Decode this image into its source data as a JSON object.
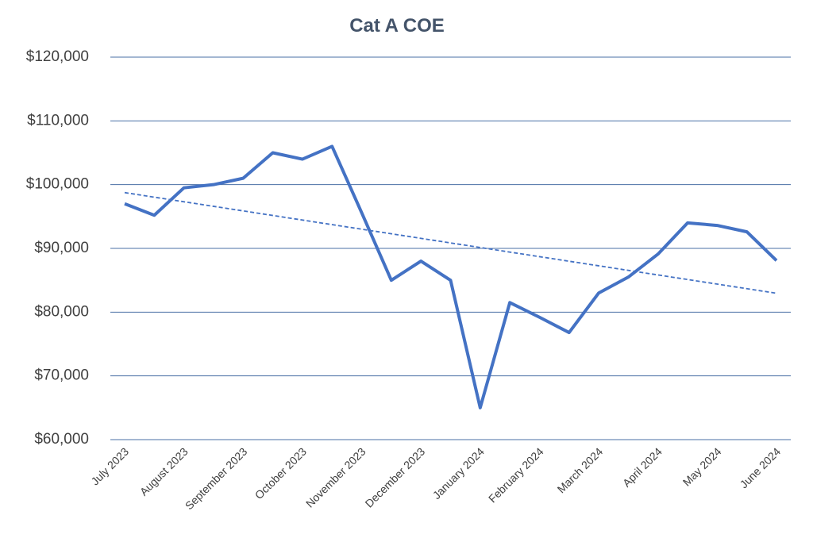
{
  "chart_data": {
    "type": "line",
    "title": "Cat A COE",
    "categories": [
      "July 2023",
      null,
      "August 2023",
      null,
      "September 2023",
      null,
      "October 2023",
      null,
      "November 2023",
      null,
      "December 2023",
      null,
      "January 2024",
      null,
      "February 2024",
      null,
      "March 2024",
      null,
      "April 2024",
      null,
      "May 2024",
      null,
      "June 2024"
    ],
    "series": [
      {
        "name": "Cat A COE",
        "color": "#4472c4",
        "values": [
          97000,
          95200,
          99500,
          100000,
          101000,
          105000,
          104000,
          106000,
          95600,
          85000,
          88000,
          85000,
          65000,
          81500,
          79200,
          76800,
          83000,
          85500,
          89100,
          94000,
          93600,
          92600,
          88100
        ]
      }
    ],
    "trendline": "linear",
    "ylim": [
      60000,
      120000
    ],
    "yticks": [
      {
        "value": 60000,
        "label": "$60,000"
      },
      {
        "value": 70000,
        "label": "$70,000"
      },
      {
        "value": 80000,
        "label": "$80,000"
      },
      {
        "value": 90000,
        "label": "$90,000"
      },
      {
        "value": 100000,
        "label": "$100,000"
      },
      {
        "value": 110000,
        "label": "$110,000"
      },
      {
        "value": 120000,
        "label": "$120,000"
      }
    ],
    "grid": true
  }
}
